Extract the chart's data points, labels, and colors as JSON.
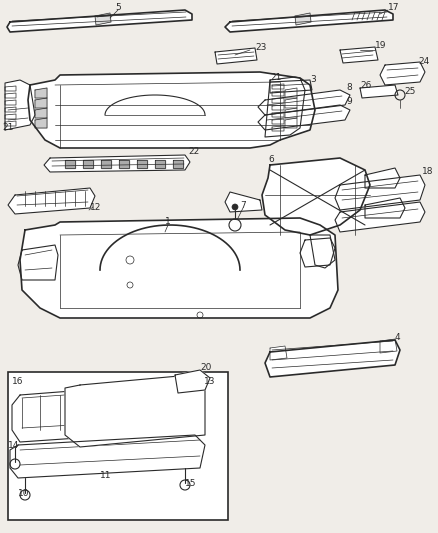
{
  "bg_color": "#f0ede8",
  "line_color": "#2a2a2a",
  "white": "#ffffff",
  "fig_width": 4.38,
  "fig_height": 5.33,
  "dpi": 100
}
